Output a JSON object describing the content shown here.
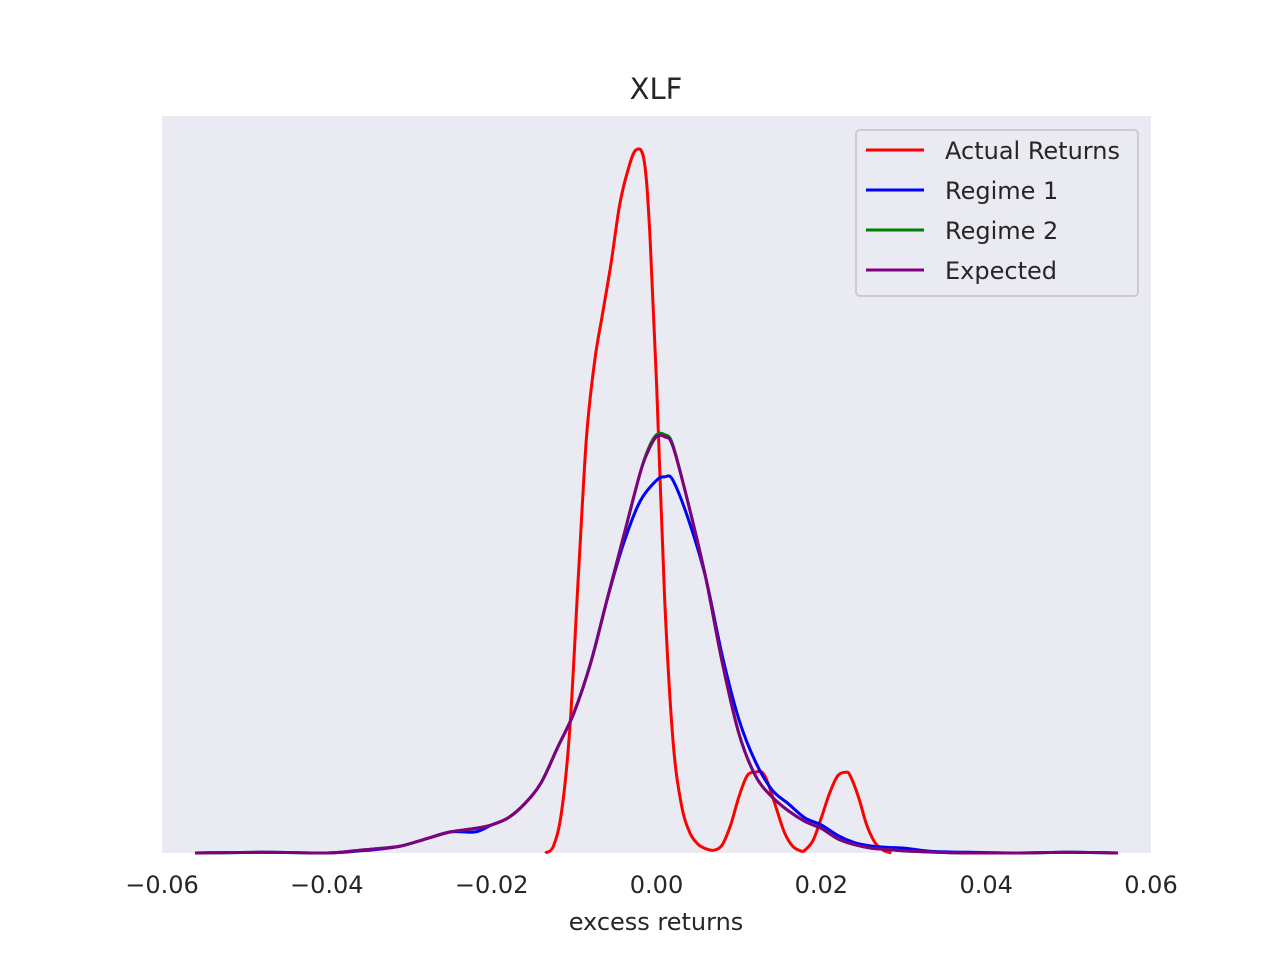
{
  "chart_data": {
    "type": "line",
    "title": "XLF",
    "xlabel": "excess returns",
    "ylabel": "",
    "xlim": [
      -0.06,
      0.06
    ],
    "ylim": [
      0,
      1
    ],
    "grid": false,
    "background": "#eaeaf2",
    "legend_position": "top-right",
    "xticks": [
      -0.06,
      -0.04,
      -0.02,
      0.0,
      0.02,
      0.04,
      0.06
    ],
    "xtick_labels": [
      "−0.06",
      "−0.04",
      "−0.02",
      "0.00",
      "0.02",
      "0.04",
      "0.06"
    ],
    "series": [
      {
        "name": "Actual Returns",
        "color": "#ff0000",
        "x": [
          -0.0135,
          -0.0125,
          -0.0115,
          -0.0105,
          -0.0095,
          -0.0085,
          -0.0075,
          -0.0065,
          -0.0055,
          -0.0045,
          -0.0035,
          -0.0025,
          -0.0015,
          -0.0008,
          0.0,
          0.001,
          0.002,
          0.003,
          0.004,
          0.005,
          0.006,
          0.007,
          0.008,
          0.009,
          0.01,
          0.011,
          0.012,
          0.0128,
          0.0135,
          0.0145,
          0.0155,
          0.0165,
          0.0175,
          0.018,
          0.019,
          0.02,
          0.021,
          0.022,
          0.023,
          0.0235,
          0.0245,
          0.0255,
          0.0265,
          0.0275,
          0.0285
        ],
        "y": [
          0.0,
          0.01,
          0.06,
          0.18,
          0.39,
          0.59,
          0.7,
          0.77,
          0.84,
          0.92,
          0.97,
          1.0,
          0.985,
          0.88,
          0.67,
          0.36,
          0.16,
          0.07,
          0.03,
          0.013,
          0.006,
          0.004,
          0.012,
          0.04,
          0.08,
          0.11,
          0.115,
          0.115,
          0.1,
          0.065,
          0.03,
          0.01,
          0.003,
          0.004,
          0.018,
          0.05,
          0.085,
          0.11,
          0.115,
          0.11,
          0.08,
          0.04,
          0.015,
          0.004,
          0.0
        ]
      },
      {
        "name": "Regime 1",
        "color": "#0000ff",
        "x": [
          -0.056,
          -0.048,
          -0.04,
          -0.036,
          -0.034,
          -0.031,
          -0.028,
          -0.025,
          -0.022,
          -0.02,
          -0.018,
          -0.016,
          -0.014,
          -0.012,
          -0.01,
          -0.008,
          -0.006,
          -0.004,
          -0.002,
          0.0,
          0.001,
          0.002,
          0.004,
          0.006,
          0.008,
          0.01,
          0.012,
          0.014,
          0.016,
          0.018,
          0.02,
          0.022,
          0.024,
          0.026,
          0.028,
          0.03,
          0.032,
          0.034,
          0.038,
          0.044,
          0.05,
          0.056
        ],
        "y": [
          0.0,
          0.001,
          0.0,
          0.003,
          0.005,
          0.01,
          0.02,
          0.03,
          0.03,
          0.04,
          0.05,
          0.07,
          0.1,
          0.15,
          0.2,
          0.27,
          0.36,
          0.44,
          0.5,
          0.53,
          0.535,
          0.53,
          0.47,
          0.39,
          0.28,
          0.19,
          0.13,
          0.09,
          0.07,
          0.05,
          0.04,
          0.025,
          0.015,
          0.01,
          0.008,
          0.007,
          0.004,
          0.002,
          0.001,
          0.0,
          0.001,
          0.0
        ]
      },
      {
        "name": "Regime 2",
        "color": "#008000",
        "x": [
          -0.056,
          -0.048,
          -0.04,
          -0.036,
          -0.034,
          -0.031,
          -0.028,
          -0.025,
          -0.022,
          -0.02,
          -0.018,
          -0.016,
          -0.014,
          -0.012,
          -0.01,
          -0.008,
          -0.006,
          -0.004,
          -0.002,
          -0.001,
          0.0,
          0.001,
          0.002,
          0.004,
          0.006,
          0.008,
          0.01,
          0.012,
          0.014,
          0.016,
          0.018,
          0.02,
          0.022,
          0.024,
          0.026,
          0.028,
          0.03,
          0.032,
          0.034,
          0.038,
          0.044,
          0.05,
          0.056
        ],
        "y": [
          0.0,
          0.001,
          0.0,
          0.004,
          0.006,
          0.01,
          0.02,
          0.03,
          0.035,
          0.04,
          0.05,
          0.07,
          0.1,
          0.15,
          0.2,
          0.27,
          0.36,
          0.45,
          0.54,
          0.575,
          0.595,
          0.595,
          0.58,
          0.49,
          0.39,
          0.27,
          0.17,
          0.11,
          0.08,
          0.06,
          0.045,
          0.035,
          0.02,
          0.012,
          0.007,
          0.005,
          0.003,
          0.002,
          0.001,
          0.0,
          0.0,
          0.001,
          0.0
        ]
      },
      {
        "name": "Expected",
        "color": "#800080",
        "x": [
          -0.056,
          -0.048,
          -0.04,
          -0.036,
          -0.034,
          -0.031,
          -0.028,
          -0.025,
          -0.022,
          -0.02,
          -0.018,
          -0.016,
          -0.014,
          -0.012,
          -0.01,
          -0.008,
          -0.006,
          -0.004,
          -0.002,
          -0.001,
          0.0,
          0.001,
          0.002,
          0.004,
          0.006,
          0.008,
          0.01,
          0.012,
          0.014,
          0.016,
          0.018,
          0.02,
          0.022,
          0.024,
          0.026,
          0.028,
          0.03,
          0.032,
          0.034,
          0.038,
          0.044,
          0.05,
          0.056
        ],
        "y": [
          0.0,
          0.001,
          0.0,
          0.004,
          0.006,
          0.01,
          0.02,
          0.03,
          0.035,
          0.04,
          0.05,
          0.07,
          0.1,
          0.15,
          0.2,
          0.27,
          0.36,
          0.45,
          0.54,
          0.572,
          0.592,
          0.592,
          0.578,
          0.49,
          0.39,
          0.27,
          0.17,
          0.11,
          0.08,
          0.06,
          0.045,
          0.035,
          0.02,
          0.012,
          0.007,
          0.005,
          0.003,
          0.002,
          0.001,
          0.0,
          0.0,
          0.001,
          0.0
        ]
      }
    ]
  }
}
